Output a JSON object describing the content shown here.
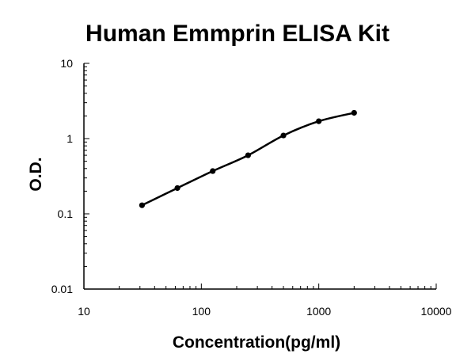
{
  "chart_data": {
    "type": "line",
    "title": "Human Emmprin ELISA Kit",
    "xlabel": "Concentration(pg/ml)",
    "ylabel": "O.D.",
    "xscale": "log",
    "yscale": "log",
    "xlim": [
      10,
      10000
    ],
    "ylim": [
      0.01,
      10
    ],
    "xticks": [
      "10",
      "100",
      "1000",
      "10000"
    ],
    "yticks": [
      "0.01",
      "0.1",
      "1",
      "10"
    ],
    "grid": false,
    "legend": "none",
    "series": [
      {
        "x": [
          31.25,
          62.5,
          125,
          250,
          500,
          1000,
          2000
        ],
        "y": [
          0.13,
          0.22,
          0.37,
          0.6,
          1.1,
          1.7,
          2.2
        ]
      }
    ],
    "colors": {
      "line": "#000000",
      "point": "#000000",
      "axis": "#000000"
    }
  }
}
